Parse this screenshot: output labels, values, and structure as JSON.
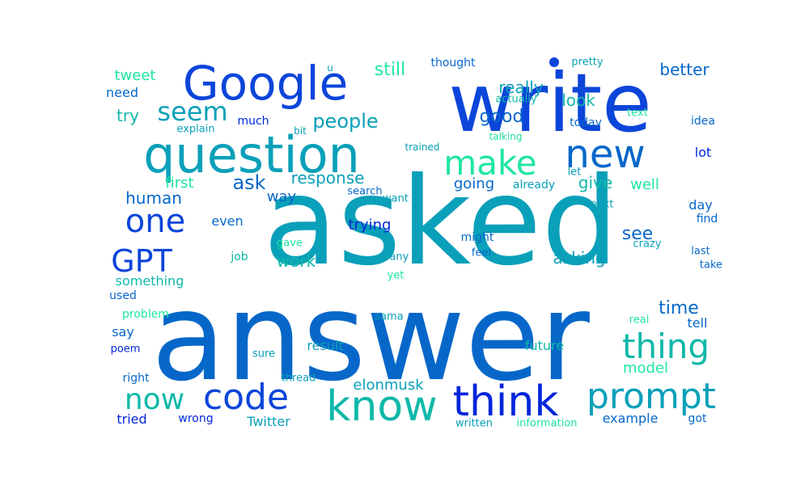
{
  "palette": {
    "blue": "#0026d9",
    "royal": "#0b45da",
    "mid_blue": "#0667c9",
    "cerulean": "#0aa0b9",
    "teal": "#0fb8a9",
    "mint": "#1ee6a0",
    "navy": "#0a1fc4"
  },
  "words": [
    "asked",
    "answer",
    "write",
    "question",
    "Google",
    "new",
    "know",
    "think",
    "prompt",
    "code",
    "thing",
    "make",
    "now",
    "one",
    "GPT",
    "seem",
    "people",
    "good",
    "ask",
    "response",
    "human",
    "still",
    "really",
    "look",
    "tweet",
    "need",
    "try",
    "better",
    "pretty",
    "u",
    "thought",
    "much",
    "explain",
    "actually",
    "today",
    "text",
    "idea",
    "talking",
    "trained",
    "bit",
    "lot",
    "first",
    "going",
    "already",
    "give",
    "well",
    "let",
    "search",
    "want",
    "way",
    "day",
    "next",
    "even",
    "trying",
    "see",
    "find",
    "might",
    "gave",
    "crazy",
    "job",
    "work",
    "feel",
    "many",
    "last",
    "take",
    "asking",
    "something",
    "yet",
    "used",
    "time",
    "problem",
    "say",
    "sama",
    "real",
    "tell",
    "poem",
    "result",
    "future",
    "model",
    "sure",
    "right",
    "thread",
    "elonmusk",
    "tried",
    "wrong",
    "Twitter",
    "example",
    "got",
    "written",
    "information"
  ]
}
